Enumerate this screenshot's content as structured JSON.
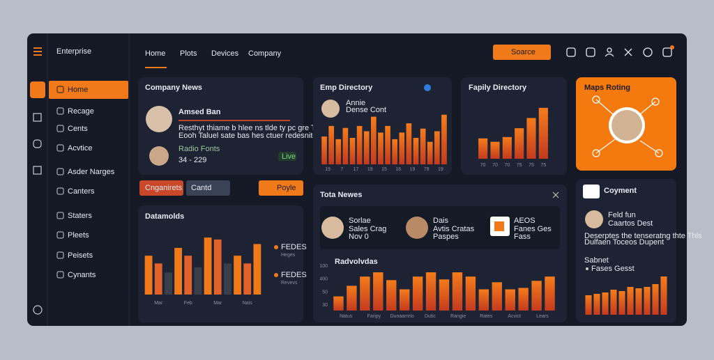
{
  "ui": {
    "brand": "Enterprise",
    "nav": [
      "Home",
      "Plots",
      "Devices",
      "Company"
    ],
    "search": "Soarce",
    "sidebar": [
      "Home",
      "Recage",
      "Cents",
      "Acvtice",
      "Asder Narges",
      "Canters",
      "Staters",
      "Pleets",
      "Peisets",
      "Cynants"
    ],
    "company_news": {
      "title": "Company News",
      "name": "Amsed Ban",
      "lines": [
        "Resthyt thiame b hlee ns tlde ty pc gre Tlore",
        "Eooh Taluel sate bas hes ctuer redesnitee"
      ],
      "radio": "Radio Fonts",
      "number": "34 - 229",
      "badge": "Live"
    },
    "buttons": [
      "Cnganirets",
      "Cantd",
      "Poyle"
    ],
    "emp": {
      "name": "Annie",
      "role": "Dense Cont"
    },
    "maps": "Maps Roting",
    "tota": {
      "title": "Tota Newes",
      "people": [
        {
          "name": "Sorlae",
          "role": "Sales Crag",
          "note": "Nov 0"
        },
        {
          "name": "Dais",
          "role": "Avtis Cratas",
          "note": "Paspes"
        },
        {
          "name": "AEOS",
          "role": "Fanes Ges",
          "note": "Fass"
        }
      ]
    },
    "coyment": {
      "title": "Coyment",
      "name": "Feld fun",
      "role": "Caartos Dest",
      "desc": "Deserptes the tenseratng thte Thls",
      "desc2": "Dulfaen Toceos Dupent",
      "sub": "Sabnet",
      "item": "Fases Gesst"
    }
  },
  "chart_data": [
    {
      "type": "bar",
      "title": "Emp Directory",
      "values": [
        42,
        58,
        38,
        55,
        40,
        58,
        50,
        72,
        48,
        58,
        38,
        48,
        62,
        40,
        54,
        34,
        50,
        75
      ],
      "ylim": [
        0,
        80
      ],
      "x_labels": [
        "19",
        "7",
        "17",
        "19",
        "15",
        "16",
        "19",
        "79",
        "19"
      ]
    },
    {
      "type": "bar",
      "title": "Fapily Directory",
      "values": [
        30,
        25,
        32,
        45,
        60,
        75
      ],
      "ylim": [
        0,
        80
      ],
      "x_labels": [
        "70",
        "70",
        "70",
        "75",
        "75",
        "75"
      ]
    },
    {
      "type": "bar",
      "title": "Datamolds",
      "values": [
        60,
        48,
        34,
        72,
        60,
        42,
        88,
        85,
        48,
        60,
        48,
        78
      ],
      "colors": [
        "#f07a1a",
        "#e2632a",
        "#3a3e4a",
        "#f07a1a",
        "#e2632a",
        "#3a3e4a",
        "#f07a1a",
        "#e2632a",
        "#3a3e4a",
        "#f07a1a",
        "#e2632a",
        "#f07a1a"
      ],
      "ylim": [
        0,
        100
      ],
      "x_labels": [
        "Mar",
        "Feb",
        "Mar",
        "Nais"
      ],
      "legend": [
        {
          "label": "FEDES",
          "sub": "Heges"
        },
        {
          "label": "FEDES",
          "sub": "Revevs"
        }
      ]
    },
    {
      "type": "bar",
      "title": "Radvolvdas",
      "values": [
        20,
        35,
        48,
        54,
        43,
        30,
        48,
        54,
        44,
        54,
        48,
        30,
        40,
        30,
        32,
        42,
        48
      ],
      "ylim": [
        0,
        60
      ],
      "y_labels": [
        "100",
        "400",
        "50",
        "30"
      ],
      "x_labels": [
        "Natus",
        "Faripy",
        "Dunaamrio",
        "Dutic",
        "Rangie",
        "Rates",
        "Acvict",
        "Lears"
      ]
    },
    {
      "type": "bar",
      "title": "",
      "values": [
        28,
        30,
        32,
        36,
        34,
        40,
        38,
        40,
        44,
        55
      ],
      "ylim": [
        0,
        60
      ]
    }
  ]
}
